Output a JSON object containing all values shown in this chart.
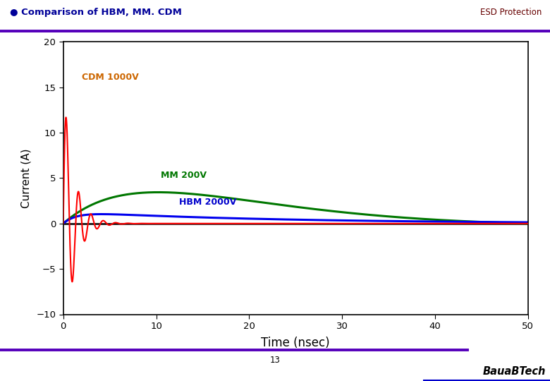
{
  "title_left": "● Comparison of HBM, MM. CDM",
  "title_right": "ESD Protection",
  "title_color_left": "#000099",
  "title_color_right": "#660000",
  "header_line_color": "#5500bb",
  "footer_line_color": "#5500bb",
  "xlabel": "Time (nsec)",
  "ylabel": "Current (A)",
  "xlim": [
    0,
    50
  ],
  "ylim": [
    -10,
    20
  ],
  "yticks": [
    -10,
    -5,
    0,
    5,
    10,
    15,
    20
  ],
  "xticks": [
    0,
    10,
    20,
    30,
    40,
    50
  ],
  "cdm_label": "CDM 1000V",
  "cdm_label_color": "#cc6600",
  "cdm_color": "#ff0000",
  "mm_label": "MM 200V",
  "mm_label_color": "#007700",
  "mm_color": "#007700",
  "hbm_label": "HBM 2000V",
  "hbm_label_color": "#0000cc",
  "hbm_color": "#0000ee",
  "bg_color": "#ffffff",
  "axis_bg": "#ffffff",
  "watermark_text": "BauaBTech",
  "page_number": "13"
}
